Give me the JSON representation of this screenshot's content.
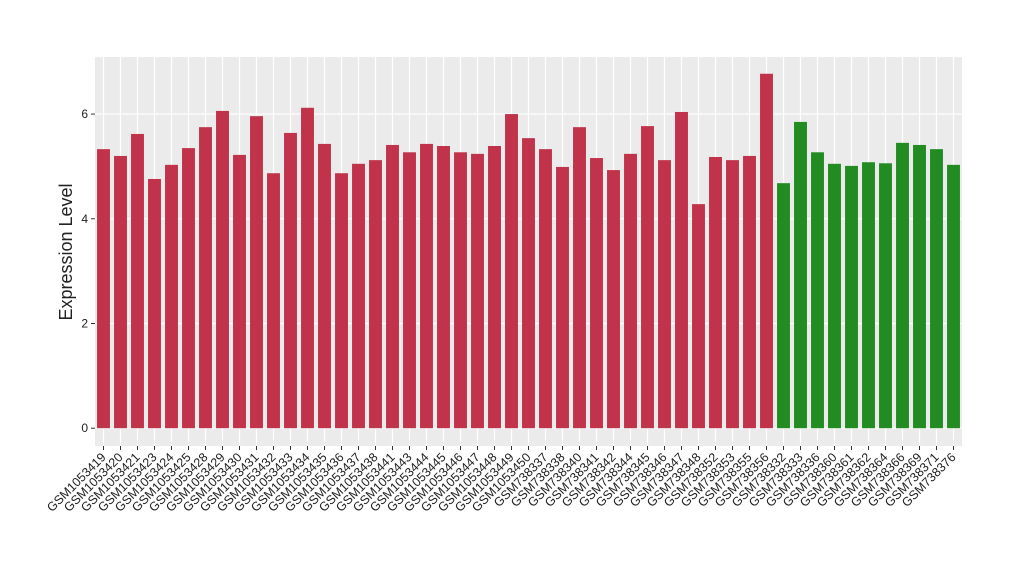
{
  "chart_data": {
    "type": "bar",
    "y_label": "Expression Level",
    "categories": [
      "GSM1053419",
      "GSM1053420",
      "GSM1053421",
      "GSM1053423",
      "GSM1053424",
      "GSM1053425",
      "GSM1053428",
      "GSM1053429",
      "GSM1053430",
      "GSM1053431",
      "GSM1053432",
      "GSM1053433",
      "GSM1053434",
      "GSM1053435",
      "GSM1053436",
      "GSM1053437",
      "GSM1053438",
      "GSM1053441",
      "GSM1053443",
      "GSM1053444",
      "GSM1053445",
      "GSM1053446",
      "GSM1053447",
      "GSM1053448",
      "GSM1053449",
      "GSM1053450",
      "GSM738337",
      "GSM738338",
      "GSM738340",
      "GSM738341",
      "GSM738342",
      "GSM738344",
      "GSM738345",
      "GSM738346",
      "GSM738347",
      "GSM738348",
      "GSM738352",
      "GSM738353",
      "GSM738355",
      "GSM738356",
      "GSM738332",
      "GSM738333",
      "GSM738336",
      "GSM738360",
      "GSM738361",
      "GSM738362",
      "GSM738364",
      "GSM738366",
      "GSM738369",
      "GSM738371",
      "GSM738376"
    ],
    "values": [
      5.33,
      5.2,
      5.62,
      4.76,
      5.03,
      5.35,
      5.75,
      6.06,
      5.22,
      5.96,
      4.87,
      5.64,
      6.12,
      5.43,
      4.87,
      5.05,
      5.12,
      5.41,
      5.27,
      5.43,
      5.39,
      5.27,
      5.24,
      5.39,
      6.0,
      5.54,
      5.33,
      4.99,
      5.75,
      5.16,
      4.93,
      5.24,
      5.77,
      5.12,
      6.04,
      4.28,
      5.18,
      5.12,
      5.2,
      6.77,
      4.68,
      5.85,
      5.27,
      5.05,
      5.01,
      5.08,
      5.06,
      5.45,
      5.41,
      5.33,
      5.03
    ],
    "colors": [
      "#c0334a",
      "#c0334a",
      "#c0334a",
      "#c0334a",
      "#c0334a",
      "#c0334a",
      "#c0334a",
      "#c0334a",
      "#c0334a",
      "#c0334a",
      "#c0334a",
      "#c0334a",
      "#c0334a",
      "#c0334a",
      "#c0334a",
      "#c0334a",
      "#c0334a",
      "#c0334a",
      "#c0334a",
      "#c0334a",
      "#c0334a",
      "#c0334a",
      "#c0334a",
      "#c0334a",
      "#c0334a",
      "#c0334a",
      "#c0334a",
      "#c0334a",
      "#c0334a",
      "#c0334a",
      "#c0334a",
      "#c0334a",
      "#c0334a",
      "#c0334a",
      "#c0334a",
      "#c0334a",
      "#c0334a",
      "#c0334a",
      "#c0334a",
      "#c0334a",
      "#228b22",
      "#228b22",
      "#228b22",
      "#228b22",
      "#228b22",
      "#228b22",
      "#228b22",
      "#228b22",
      "#228b22",
      "#228b22",
      "#228b22"
    ],
    "ylim": [
      -0.34,
      7.09
    ],
    "yticks": [
      0,
      2,
      4,
      6
    ],
    "grid": true
  }
}
